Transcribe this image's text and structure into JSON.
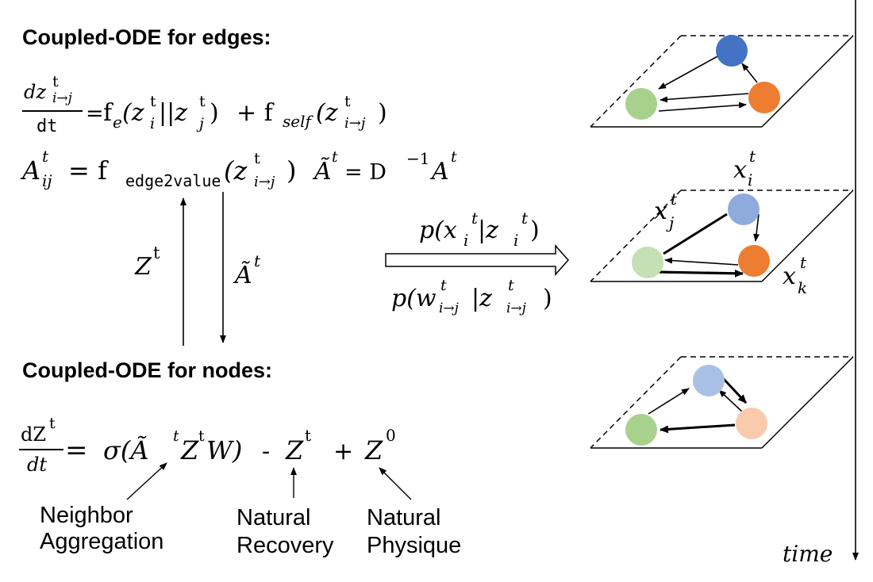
{
  "headings": {
    "edges": "Coupled-ODE for edges:",
    "nodes": "Coupled-ODE for nodes:"
  },
  "annotations": {
    "neighbor_line1": "Neighbor",
    "neighbor_line2": "Aggregation",
    "recovery_line1": "Natural",
    "recovery_line2": "Recovery",
    "physique_line1": "Natural",
    "physique_line2": "Physique"
  },
  "edge_ode": {
    "num_d": "dz",
    "num_t": "t",
    "num_sub": "i→j",
    "den": "dt",
    "eq": "=",
    "fe": "f",
    "fe_sub": "e",
    "fe_arg_open": "(z",
    "zi_sup": "t",
    "zi_sub": "i",
    "concat": "||z",
    "zj_sup": "t",
    "zj_sub": "j",
    "close": ")",
    "plus": "+ f",
    "self_sub": "self",
    "self_open": "(z",
    "self_sup": "t",
    "self_sub2": "i→j",
    "self_close": ")"
  },
  "adj_eq": {
    "A": "A",
    "A_sup": "t",
    "A_sub": "ij",
    "eq": "= f",
    "f_sub": "edge2value",
    "open": "(z",
    "z_sup": "t",
    "z_sub": "i→j",
    "close": ")",
    "Atil": "Ã",
    "Atil_sup": "t",
    "eq2": "= D",
    "D_sup": "−1",
    "A2": "A",
    "A2_sup": "t"
  },
  "arrow_labels": {
    "Z": "Z",
    "Z_sup": "t",
    "Atil": "Ã",
    "Atil_sup": "t"
  },
  "emission": {
    "top": "p(x",
    "top_sub": "i",
    "top_sup": "t",
    "top_mid": "|z",
    "top_sub2": "i",
    "top_sup2": "t",
    "top_close": ")",
    "bot": "p(w",
    "bot_sup": "t",
    "bot_sub": "i→j",
    "bot_mid": "|z",
    "bot_sup2": "t",
    "bot_sub2": "i→j",
    "bot_close": ")"
  },
  "node_ode": {
    "num": "dZ",
    "num_sup": "t",
    "den": "dt",
    "eq": "=",
    "sigma": "σ(Ã",
    "s_sup": "t",
    "s_Z": "Z",
    "s_Z_sup": "t",
    "s_W": "W)",
    "minus": "-",
    "Z": "Z",
    "Z_sup": "t",
    "plus": "+",
    "Z0": "Z",
    "Z0_sup": "0"
  },
  "node_labels": {
    "xi": "x",
    "xi_sub": "i",
    "xi_sup": "t",
    "xj": "x",
    "xj_sub": "j",
    "xj_sup": "t",
    "xk": "x",
    "xk_sub": "k",
    "xk_sup": "t"
  },
  "time_label": "time",
  "colors": {
    "blue": "#4472C4",
    "orange": "#ED7D31",
    "green": "#A9D18E",
    "light_blue": "#8FAADC",
    "light_green": "#C5E0B4",
    "light_orange": "#F8CBAD",
    "mid_blue": "#A9C0E6"
  }
}
